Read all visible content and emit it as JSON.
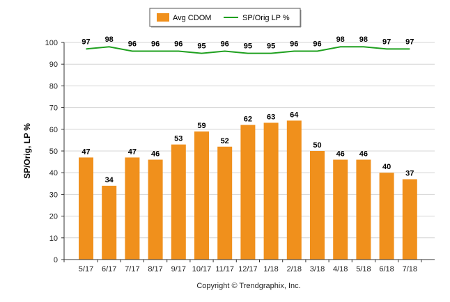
{
  "chart_data": {
    "type": "bar",
    "categories": [
      "5/17",
      "6/17",
      "7/17",
      "8/17",
      "9/17",
      "10/17",
      "11/17",
      "12/17",
      "1/18",
      "2/18",
      "3/18",
      "4/18",
      "5/18",
      "6/18",
      "7/18"
    ],
    "series": [
      {
        "name": "Avg CDOM",
        "type": "bar",
        "color": "#f0901c",
        "values": [
          47,
          34,
          47,
          46,
          53,
          59,
          52,
          62,
          63,
          64,
          50,
          46,
          46,
          40,
          37
        ]
      },
      {
        "name": "SP/Orig LP %",
        "type": "line",
        "color": "#1fa01f",
        "values": [
          97,
          98,
          96,
          96,
          96,
          95,
          96,
          95,
          95,
          96,
          96,
          98,
          98,
          97,
          97
        ]
      }
    ],
    "ylabel": "SP/Orig, LP %",
    "ylim": [
      0,
      100
    ],
    "yticks": [
      0,
      10,
      20,
      30,
      40,
      50,
      60,
      70,
      80,
      90,
      100
    ],
    "grid": true,
    "legend_position": "top-center"
  },
  "legend": {
    "bar_label": "Avg CDOM",
    "line_label": "SP/Orig LP %"
  },
  "axis": {
    "ylabel": "SP/Orig, LP %"
  },
  "footer": {
    "copyright": "Copyright © Trendgraphix, Inc."
  }
}
